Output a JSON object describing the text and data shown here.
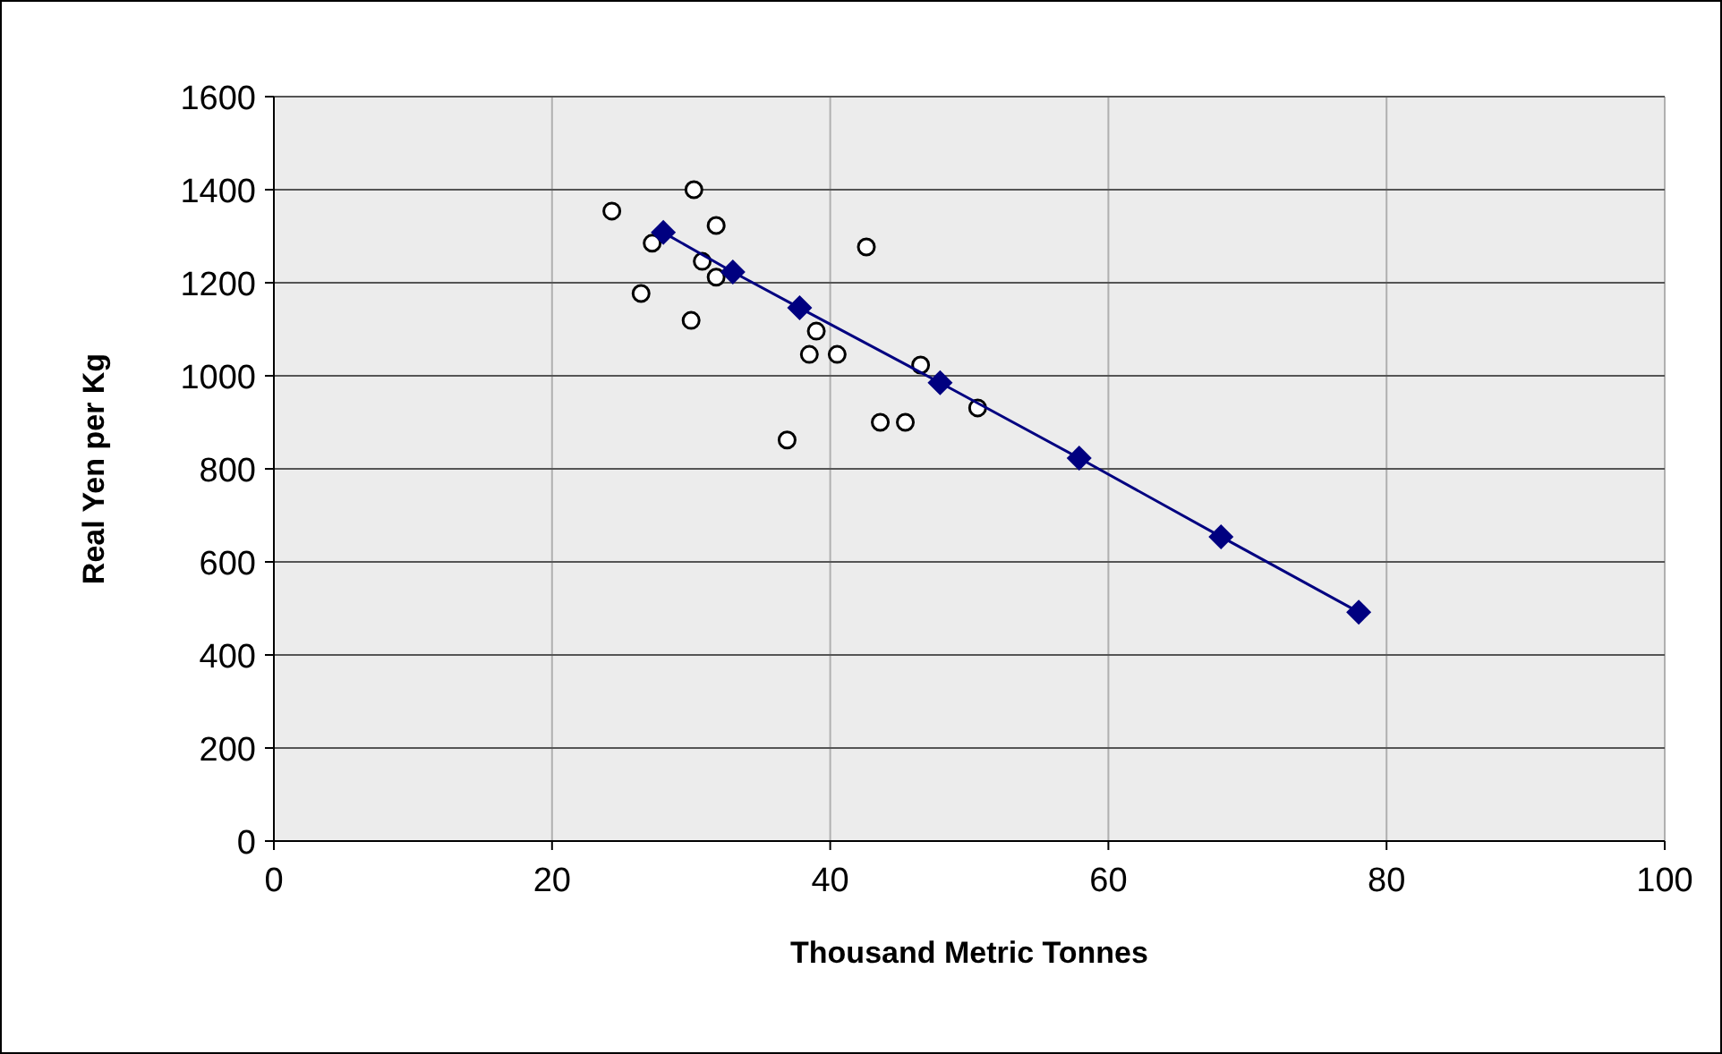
{
  "chart_data": {
    "type": "scatter",
    "xlabel": "Thousand Metric Tonnes",
    "ylabel": "Real Yen per Kg",
    "xlim": [
      0,
      100
    ],
    "xticks": [
      0,
      20,
      40,
      60,
      80,
      100
    ],
    "ylim": [
      0,
      1600
    ],
    "yticks": [
      0,
      200,
      400,
      600,
      800,
      1000,
      1200,
      1400,
      1600
    ],
    "grid": true,
    "series": [
      {
        "color": "#000000",
        "marker": "circle",
        "x": [
          24.3,
          30.2,
          27.2,
          31.8,
          26.4,
          30.8,
          31.8,
          30.0,
          42.6,
          39.0,
          38.5,
          40.5,
          46.5,
          36.9,
          43.6,
          45.4,
          50.6
        ],
        "values": [
          1354,
          1400,
          1285,
          1323,
          1177,
          1246,
          1212,
          1119,
          1277,
          1096,
          1046,
          1046,
          1023,
          862,
          900,
          900,
          931
        ]
      },
      {
        "type": "line",
        "color": "#000080",
        "marker": "diamond",
        "line_style": "solid",
        "x": [
          28,
          33,
          37.8,
          47.9,
          57.9,
          68.1,
          78
        ],
        "values": [
          1308,
          1223,
          1146,
          985,
          823,
          654,
          492
        ]
      }
    ]
  }
}
